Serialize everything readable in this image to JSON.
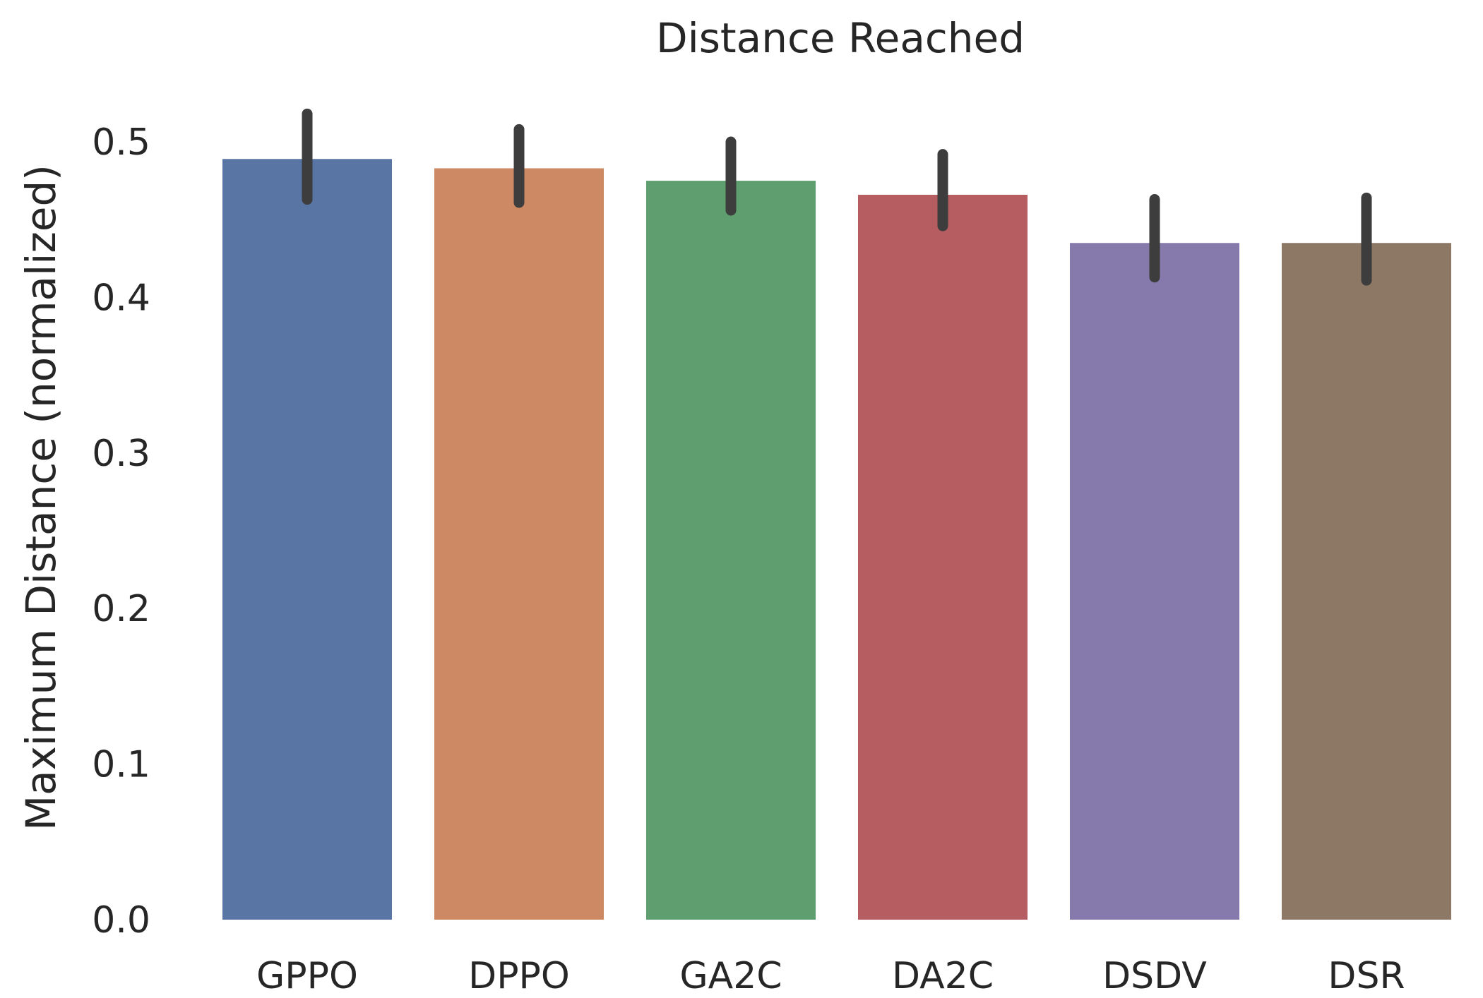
{
  "chart_data": {
    "type": "bar",
    "title": "Distance Reached",
    "xlabel": "",
    "ylabel": "Maximum Distance (normalized)",
    "categories": [
      "GPPO",
      "DPPO",
      "GA2C",
      "DA2C",
      "DSDV",
      "DSR"
    ],
    "values": [
      0.489,
      0.483,
      0.475,
      0.466,
      0.435,
      0.435
    ],
    "error_low": [
      0.463,
      0.461,
      0.456,
      0.446,
      0.413,
      0.411
    ],
    "error_high": [
      0.518,
      0.508,
      0.5,
      0.492,
      0.463,
      0.464
    ],
    "colors": [
      "#5875a4",
      "#cc8963",
      "#5f9e6e",
      "#b55d60",
      "#857aab",
      "#8d7866"
    ],
    "error_color": "#3d3d3d",
    "ylim": [
      0,
      0.52
    ],
    "yticks": [
      "0.0",
      "0.1",
      "0.2",
      "0.3",
      "0.4",
      "0.5"
    ],
    "ytick_values": [
      0,
      0.1,
      0.2,
      0.3,
      0.4,
      0.5
    ],
    "grid": false,
    "legend": "none"
  }
}
